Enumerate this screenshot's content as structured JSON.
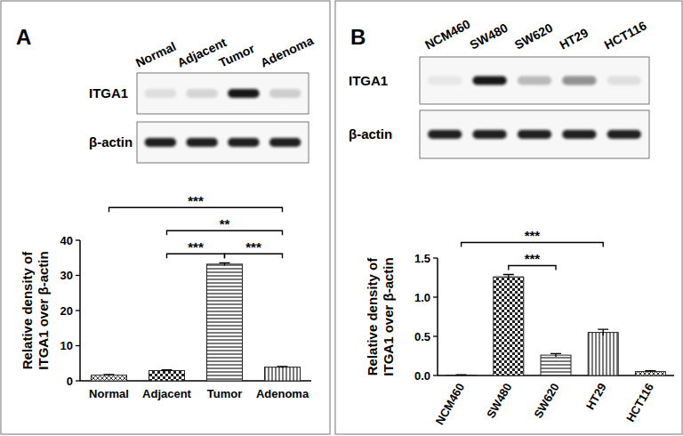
{
  "chart_data": [
    {
      "panel": "A",
      "type": "bar",
      "blot_labels": [
        "ITGA1",
        "β-actin"
      ],
      "categories": [
        "Normal",
        "Adjacent",
        "Tumor",
        "Adenoma"
      ],
      "values": [
        1.6,
        2.9,
        33.2,
        3.9
      ],
      "errors": [
        0.2,
        0.2,
        0.4,
        0.2
      ],
      "color": "#222222",
      "ylabel": "Relative density of\nITGA1 over β-actin",
      "ylim": [
        0,
        40
      ],
      "yticks": [
        0,
        10,
        20,
        30,
        40
      ],
      "annotations": [
        {
          "from": 0,
          "to": 3,
          "label": "***"
        },
        {
          "from": 1,
          "to": 3,
          "label": "**"
        },
        {
          "from": 1,
          "to": 2,
          "label": "***"
        },
        {
          "from": 2,
          "to": 3,
          "label": "***"
        }
      ]
    },
    {
      "panel": "B",
      "type": "bar",
      "blot_labels": [
        "ITGA1",
        "β-actin"
      ],
      "categories": [
        "NCM460",
        "SW480",
        "SW620",
        "HT29",
        "HCT116"
      ],
      "values": [
        0.005,
        1.26,
        0.26,
        0.55,
        0.05
      ],
      "errors": [
        0.005,
        0.03,
        0.02,
        0.04,
        0.01
      ],
      "color": "#222222",
      "ylabel": "Relative density of\nITGA1 over β-actin",
      "ylim": [
        0,
        1.5
      ],
      "yticks": [
        {
          "value": 0,
          "label": "0.0"
        },
        0.5,
        {
          "value": 1,
          "label": "1.0"
        },
        1.5
      ],
      "annotations": [
        {
          "from": 0,
          "to": 3,
          "label": "***"
        },
        {
          "from": 1,
          "to": 2,
          "label": "***"
        }
      ]
    }
  ]
}
